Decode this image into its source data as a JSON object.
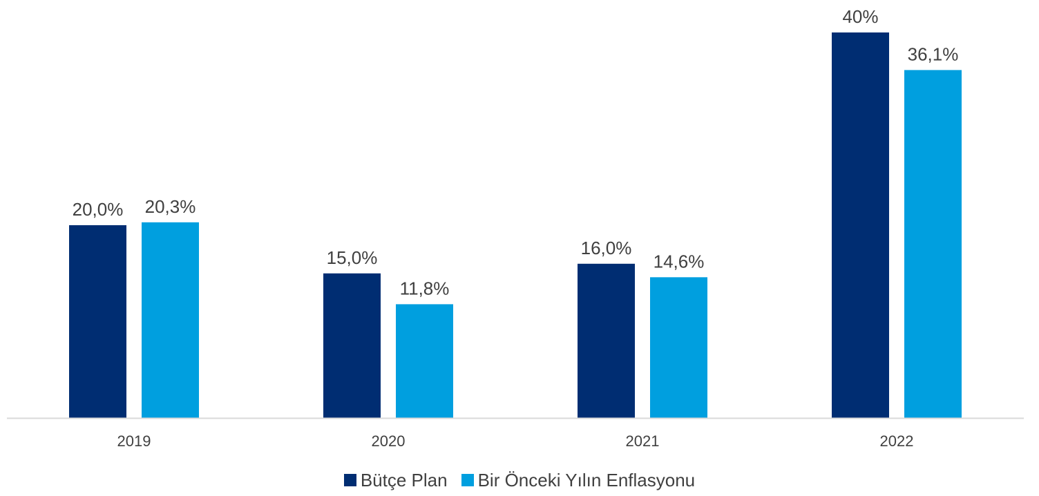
{
  "chart_data": {
    "type": "bar",
    "categories": [
      "2019",
      "2020",
      "2021",
      "2022"
    ],
    "series": [
      {
        "name": "Bütçe Plan",
        "color": "#002D72",
        "values": [
          20.0,
          15.0,
          16.0,
          40
        ],
        "labels": [
          "20,0%",
          "15,0%",
          "16,0%",
          "40%"
        ]
      },
      {
        "name": "Bir Önceki Yılın Enflasyonu",
        "color": "#009FDF",
        "values": [
          20.3,
          11.8,
          14.6,
          36.1
        ],
        "labels": [
          "20,3%",
          "11,8%",
          "14,6%",
          "36,1%"
        ]
      }
    ],
    "ylim": [
      0,
      40
    ],
    "grid": false,
    "legend_position": "bottom",
    "axis_color": "#D9D9D9"
  }
}
